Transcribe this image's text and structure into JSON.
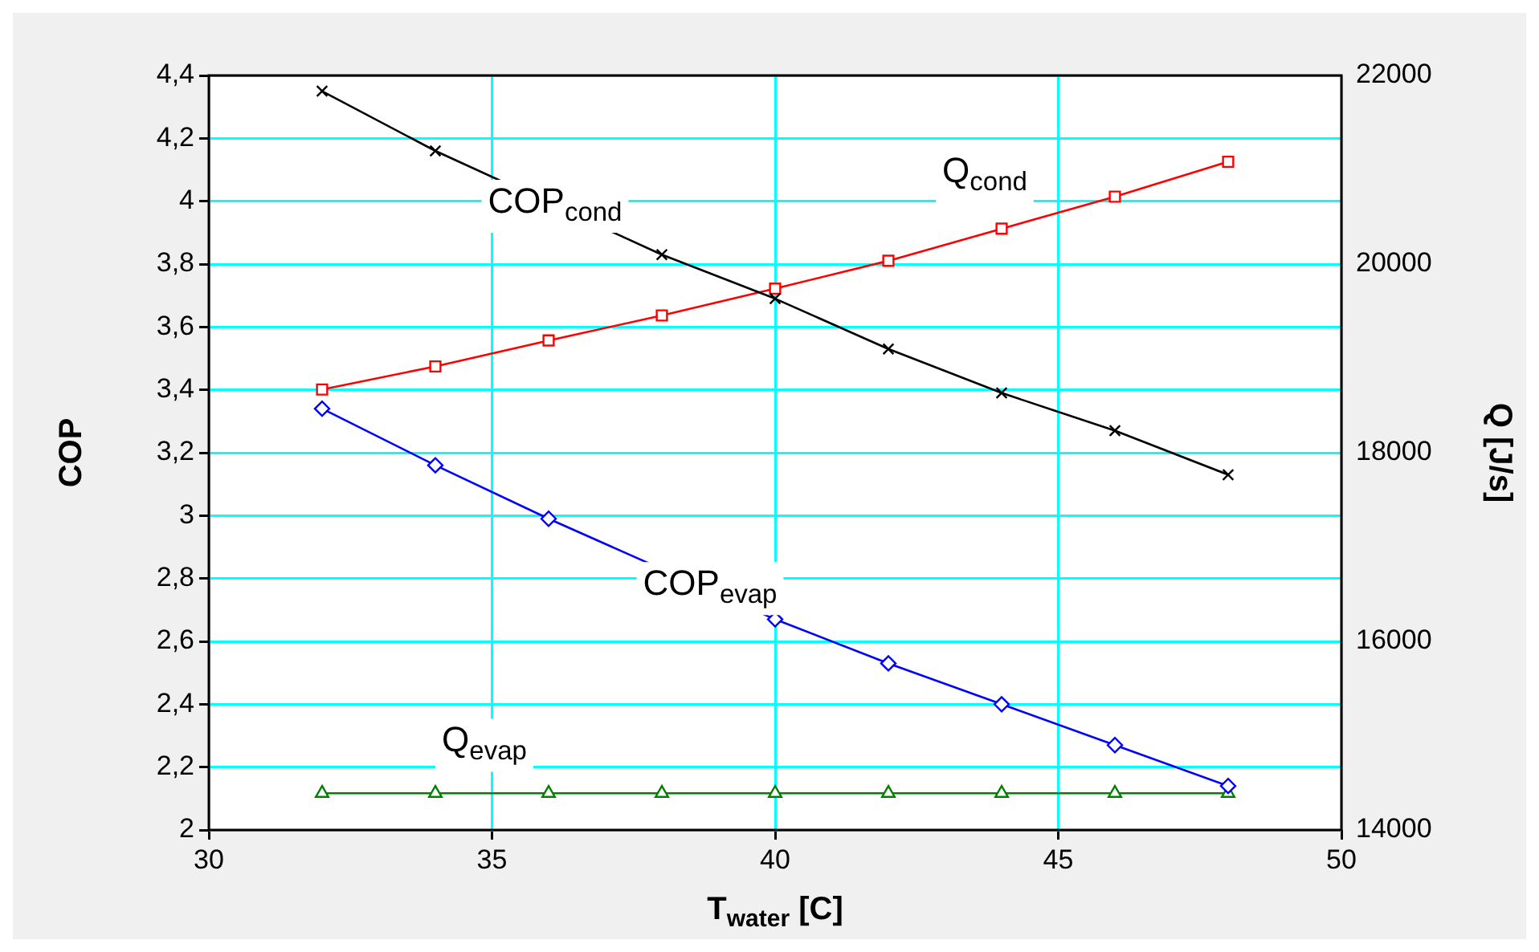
{
  "chart_data": {
    "type": "line",
    "xlabel": "T$_{water}$ [C]",
    "ylabel": "COP",
    "y2label": "Q [J/s]",
    "x": [
      32,
      34,
      36,
      38,
      40,
      42,
      44,
      46,
      48
    ],
    "series": [
      {
        "name": "COP$_{cond}$",
        "color": "#000000",
        "marker": "cross",
        "values": [
          4.35,
          4.16,
          null,
          3.83,
          3.69,
          3.53,
          3.39,
          3.27,
          3.13
        ]
      },
      {
        "name": "Q$_{cond}$",
        "color": "#ff0000",
        "marker": "square",
        "axis": "y2",
        "values": [
          18670,
          18915,
          19190,
          19455,
          19740,
          20035,
          20375,
          20715,
          21085
        ]
      },
      {
        "name": "COP$_{evap}$",
        "color": "#0000ff",
        "marker": "diamond",
        "values": [
          3.34,
          3.16,
          2.99,
          null,
          2.67,
          2.53,
          2.4,
          2.27,
          2.14
        ]
      },
      {
        "name": "Q$_{evap}$",
        "color": "#008000",
        "marker": "triangle",
        "axis": "y2",
        "values": [
          14390,
          14390,
          14390,
          14390,
          14390,
          14390,
          14390,
          14390,
          14390
        ]
      }
    ],
    "xlim": [
      30,
      50
    ],
    "xticks": [
      30,
      35,
      40,
      45,
      50
    ],
    "ylim": [
      2,
      4.4
    ],
    "yticks": [
      2,
      {
        "value": 2.2,
        "label": "2,2"
      },
      {
        "value": 2.4,
        "label": "2,4"
      },
      {
        "value": 2.6,
        "label": "2,6"
      },
      {
        "value": 2.8,
        "label": "2,8"
      },
      3,
      {
        "value": 3.2,
        "label": "3,2"
      },
      {
        "value": 3.4,
        "label": "3,4"
      },
      {
        "value": 3.6,
        "label": "3,6"
      },
      {
        "value": 3.8,
        "label": "3,8"
      },
      4,
      {
        "value": 4.2,
        "label": "4,2"
      },
      {
        "value": 4.4,
        "label": "4,4"
      }
    ],
    "y2lim": [
      14000,
      22000
    ],
    "y2ticks": [
      14000,
      16000,
      18000,
      20000,
      22000
    ],
    "grid": true,
    "legend": false,
    "line_style": "solid"
  }
}
